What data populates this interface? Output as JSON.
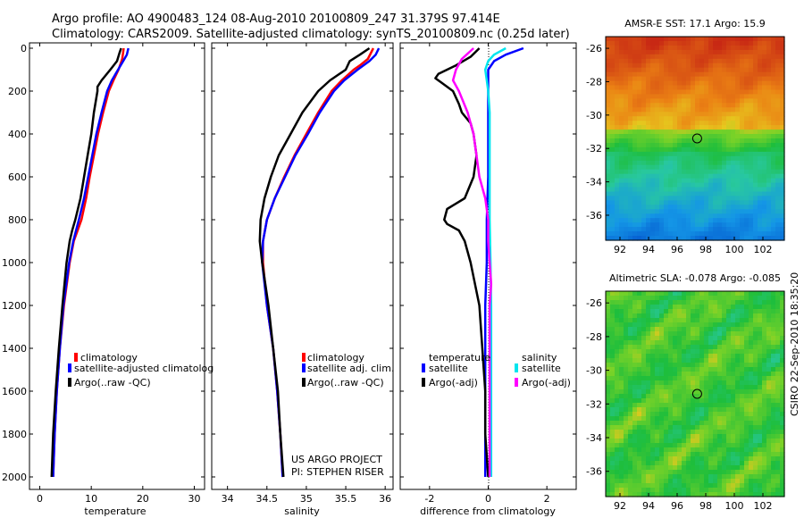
{
  "title": {
    "line1": "Argo profile: AO 4900483_124 08-Aug-2010 20100809_247 31.379S 97.414E",
    "line2": "Climatology: CARS2009. Satellite-adjusted climatology: synTS_20100809.nc (0.25d later)"
  },
  "colors": {
    "climatology": "#ff0000",
    "satellite": "#0000ff",
    "argo": "#000000",
    "sal_satellite": "#00e5ee",
    "sal_argo": "#ff00ff"
  },
  "chart_data": [
    {
      "type": "line",
      "panel": "temperature",
      "xlabel": "temperature",
      "ylabel": "",
      "xlim": [
        -2,
        32
      ],
      "ylim": [
        2000,
        0
      ],
      "xticks": [
        0,
        10,
        20,
        30
      ],
      "yticks": [
        0,
        200,
        400,
        600,
        800,
        1000,
        1200,
        1400,
        1600,
        1800,
        2000
      ],
      "legend": [
        "climatology",
        "satellite-adjusted climatolog",
        "Argo(..raw -QC)"
      ],
      "series": [
        {
          "name": "climatology",
          "color": "#ff0000",
          "y": [
            0,
            50,
            100,
            150,
            200,
            300,
            400,
            500,
            600,
            700,
            800,
            900,
            1000,
            1200,
            1400,
            1600,
            1800,
            2000
          ],
          "x": [
            16.3,
            16.0,
            15.3,
            14.3,
            13.4,
            12.3,
            11.3,
            10.5,
            9.7,
            9.0,
            8.1,
            6.6,
            5.8,
            4.7,
            3.9,
            3.3,
            2.9,
            2.6
          ]
        },
        {
          "name": "satellite-adjusted climatolog",
          "color": "#0000ff",
          "y": [
            0,
            30,
            60,
            100,
            150,
            200,
            300,
            400,
            500,
            600,
            700,
            800,
            900,
            1000,
            1200,
            1400,
            1600,
            1800,
            2000
          ],
          "x": [
            17.2,
            16.9,
            16.2,
            15.2,
            14.0,
            13.1,
            12.0,
            11.0,
            10.2,
            9.4,
            8.6,
            7.6,
            6.5,
            5.7,
            4.6,
            3.9,
            3.3,
            2.9,
            2.6
          ]
        },
        {
          "name": "Argo(..raw -QC)",
          "color": "#000000",
          "y": [
            0,
            20,
            60,
            100,
            150,
            180,
            200,
            300,
            400,
            500,
            600,
            700,
            800,
            850,
            900,
            1000,
            1200,
            1400,
            1600,
            1800,
            2000
          ],
          "x": [
            15.8,
            15.5,
            15.0,
            13.7,
            12.0,
            11.2,
            11.2,
            10.5,
            10.0,
            9.3,
            8.6,
            7.9,
            6.9,
            6.3,
            5.8,
            5.2,
            4.4,
            3.7,
            3.1,
            2.6,
            2.3
          ]
        }
      ]
    },
    {
      "type": "line",
      "panel": "salinity",
      "xlabel": "salinity",
      "ylabel": "",
      "xlim": [
        33.8,
        36.1
      ],
      "ylim": [
        2000,
        0
      ],
      "xticks": [
        34,
        34.5,
        35,
        35.5,
        36
      ],
      "legend": [
        "climatology",
        "satellite adj. clim.",
        "Argo(..raw -QC)"
      ],
      "annotation": [
        "US ARGO PROJECT",
        "PI: STEPHEN RISER"
      ],
      "series": [
        {
          "name": "climatology",
          "color": "#ff0000",
          "y": [
            0,
            50,
            80,
            100,
            150,
            200,
            300,
            400,
            500,
            600,
            700,
            800,
            900,
            1000,
            1200,
            1400,
            1600,
            1800,
            2000
          ],
          "x": [
            35.85,
            35.78,
            35.68,
            35.6,
            35.45,
            35.32,
            35.15,
            35.0,
            34.85,
            34.72,
            34.6,
            34.5,
            34.45,
            34.45,
            34.5,
            34.58,
            34.63,
            34.67,
            34.7
          ]
        },
        {
          "name": "satellite adj. clim.",
          "color": "#0000ff",
          "y": [
            0,
            30,
            60,
            100,
            150,
            200,
            300,
            400,
            500,
            600,
            700,
            800,
            900,
            1000,
            1200,
            1400,
            1600,
            1800,
            2000
          ],
          "x": [
            35.92,
            35.88,
            35.8,
            35.65,
            35.48,
            35.35,
            35.17,
            35.02,
            34.86,
            34.73,
            34.6,
            34.5,
            34.45,
            34.44,
            34.5,
            34.58,
            34.63,
            34.67,
            34.7
          ]
        },
        {
          "name": "Argo(..raw -QC)",
          "color": "#000000",
          "y": [
            0,
            30,
            60,
            100,
            150,
            200,
            300,
            400,
            500,
            600,
            700,
            800,
            900,
            1000,
            1200,
            1400,
            1600,
            1800,
            2000
          ],
          "x": [
            35.8,
            35.68,
            35.55,
            35.5,
            35.3,
            35.15,
            34.95,
            34.8,
            34.65,
            34.55,
            34.47,
            34.42,
            34.41,
            34.44,
            34.52,
            34.58,
            34.64,
            34.67,
            34.71
          ]
        }
      ]
    },
    {
      "type": "line",
      "panel": "difference",
      "xlabel": "difference from climatology",
      "ylabel": "",
      "xlim": [
        -3,
        3
      ],
      "ylim": [
        2000,
        0
      ],
      "xticks": [
        -2,
        0,
        2
      ],
      "legend_titles": [
        "temperature",
        "salinity"
      ],
      "legend": [
        "satellite",
        "Argo(-adj)",
        "satellite",
        "Argo(-adj)"
      ],
      "series": [
        {
          "name": "temperature satellite",
          "color": "#0000ff",
          "y": [
            0,
            30,
            60,
            100,
            200,
            400,
            600,
            800,
            1000,
            1200,
            1400,
            1600,
            1800,
            2000
          ],
          "x": [
            1.2,
            0.6,
            0.2,
            0.0,
            0.0,
            0.0,
            0.0,
            -0.05,
            -0.05,
            -0.1,
            -0.1,
            -0.1,
            -0.1,
            -0.1
          ]
        },
        {
          "name": "temperature Argo(-adj)",
          "color": "#000000",
          "y": [
            0,
            40,
            80,
            120,
            140,
            160,
            200,
            260,
            300,
            350,
            400,
            500,
            600,
            700,
            750,
            800,
            820,
            850,
            900,
            1000,
            1200,
            1400,
            1600,
            1800,
            2000
          ],
          "x": [
            -0.3,
            -0.6,
            -1.1,
            -1.7,
            -1.8,
            -1.6,
            -1.2,
            -1.0,
            -0.9,
            -0.6,
            -0.5,
            -0.4,
            -0.5,
            -0.8,
            -1.4,
            -1.5,
            -1.4,
            -1.0,
            -0.8,
            -0.6,
            -0.3,
            -0.2,
            -0.1,
            -0.1,
            0.0
          ]
        },
        {
          "name": "salinity satellite",
          "color": "#00e5ee",
          "y": [
            0,
            30,
            60,
            100,
            150,
            200,
            300,
            400,
            600,
            800,
            1000,
            1200,
            1400,
            1600,
            1800,
            2000
          ],
          "x": [
            0.6,
            0.2,
            0.0,
            -0.1,
            -0.05,
            0.0,
            0.05,
            0.05,
            0.05,
            0.05,
            0.08,
            0.1,
            0.1,
            0.1,
            0.1,
            0.1
          ]
        },
        {
          "name": "salinity Argo(-adj)",
          "color": "#ff00ff",
          "y": [
            0,
            50,
            100,
            150,
            200,
            300,
            400,
            500,
            600,
            700,
            800,
            900,
            1000,
            1100,
            1200,
            1400,
            1600,
            1800,
            2000
          ],
          "x": [
            -0.5,
            -0.9,
            -1.1,
            -1.2,
            -1.0,
            -0.7,
            -0.5,
            -0.4,
            -0.3,
            -0.1,
            0.0,
            0.0,
            0.05,
            0.1,
            0.05,
            0.05,
            0.05,
            0.05,
            0.05
          ]
        }
      ]
    },
    {
      "type": "heatmap",
      "panel": "sst-map",
      "title": "AMSR-E SST: 17.1  Argo: 15.9",
      "xticks": [
        92,
        94,
        96,
        98,
        100,
        102
      ],
      "yticks": [
        -26,
        -28,
        -30,
        -32,
        -34,
        -36
      ],
      "xlim": [
        91,
        103.5
      ],
      "ylim": [
        -37.5,
        -25.3
      ],
      "marker": {
        "lon": 97.4,
        "lat": -31.4
      }
    },
    {
      "type": "heatmap",
      "panel": "sla-map",
      "title": "Altimetric SLA: -0.078  Argo: -0.085",
      "xticks": [
        92,
        94,
        96,
        98,
        100,
        102
      ],
      "yticks": [
        -26,
        -28,
        -30,
        -32,
        -34,
        -36
      ],
      "xlim": [
        91,
        103.5
      ],
      "ylim": [
        -37.5,
        -25.3
      ],
      "marker": {
        "lon": 97.4,
        "lat": -31.4
      }
    }
  ],
  "footer": {
    "credit": "CSIRO 22-Sep-2010 18:35:20"
  }
}
